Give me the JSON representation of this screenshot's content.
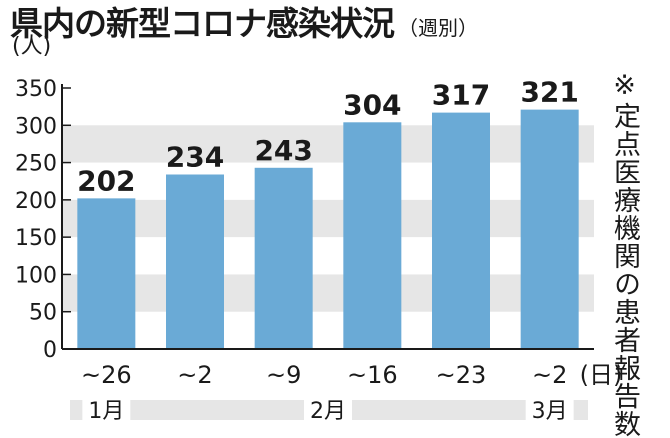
{
  "header": {
    "title": "県内の新型コロナ感染状況",
    "subtitle": "（週別）"
  },
  "note": "※定点医療機関の患者報告数",
  "chart_data": {
    "type": "bar",
    "title": "県内の新型コロナ感染状況",
    "subtitle": "（週別）",
    "ylabel": "(人)",
    "xlabel": "(日)",
    "ylim": [
      0,
      350
    ],
    "yticks": [
      0,
      50,
      100,
      150,
      200,
      250,
      300,
      350
    ],
    "categories": [
      "~26",
      "~2",
      "~9",
      "~16",
      "~23",
      "~2"
    ],
    "values": [
      202,
      234,
      243,
      304,
      317,
      321
    ],
    "month_groups": [
      {
        "label": "1月",
        "start": 0,
        "end": 0
      },
      {
        "label": "2月",
        "start": 1,
        "end": 4
      },
      {
        "label": "3月",
        "start": 5,
        "end": 5
      }
    ],
    "colors": {
      "bar": "#6aaad6",
      "band": "#e6e6e6",
      "axis": "#1a1a1a"
    },
    "grid": true,
    "legend": "none"
  }
}
